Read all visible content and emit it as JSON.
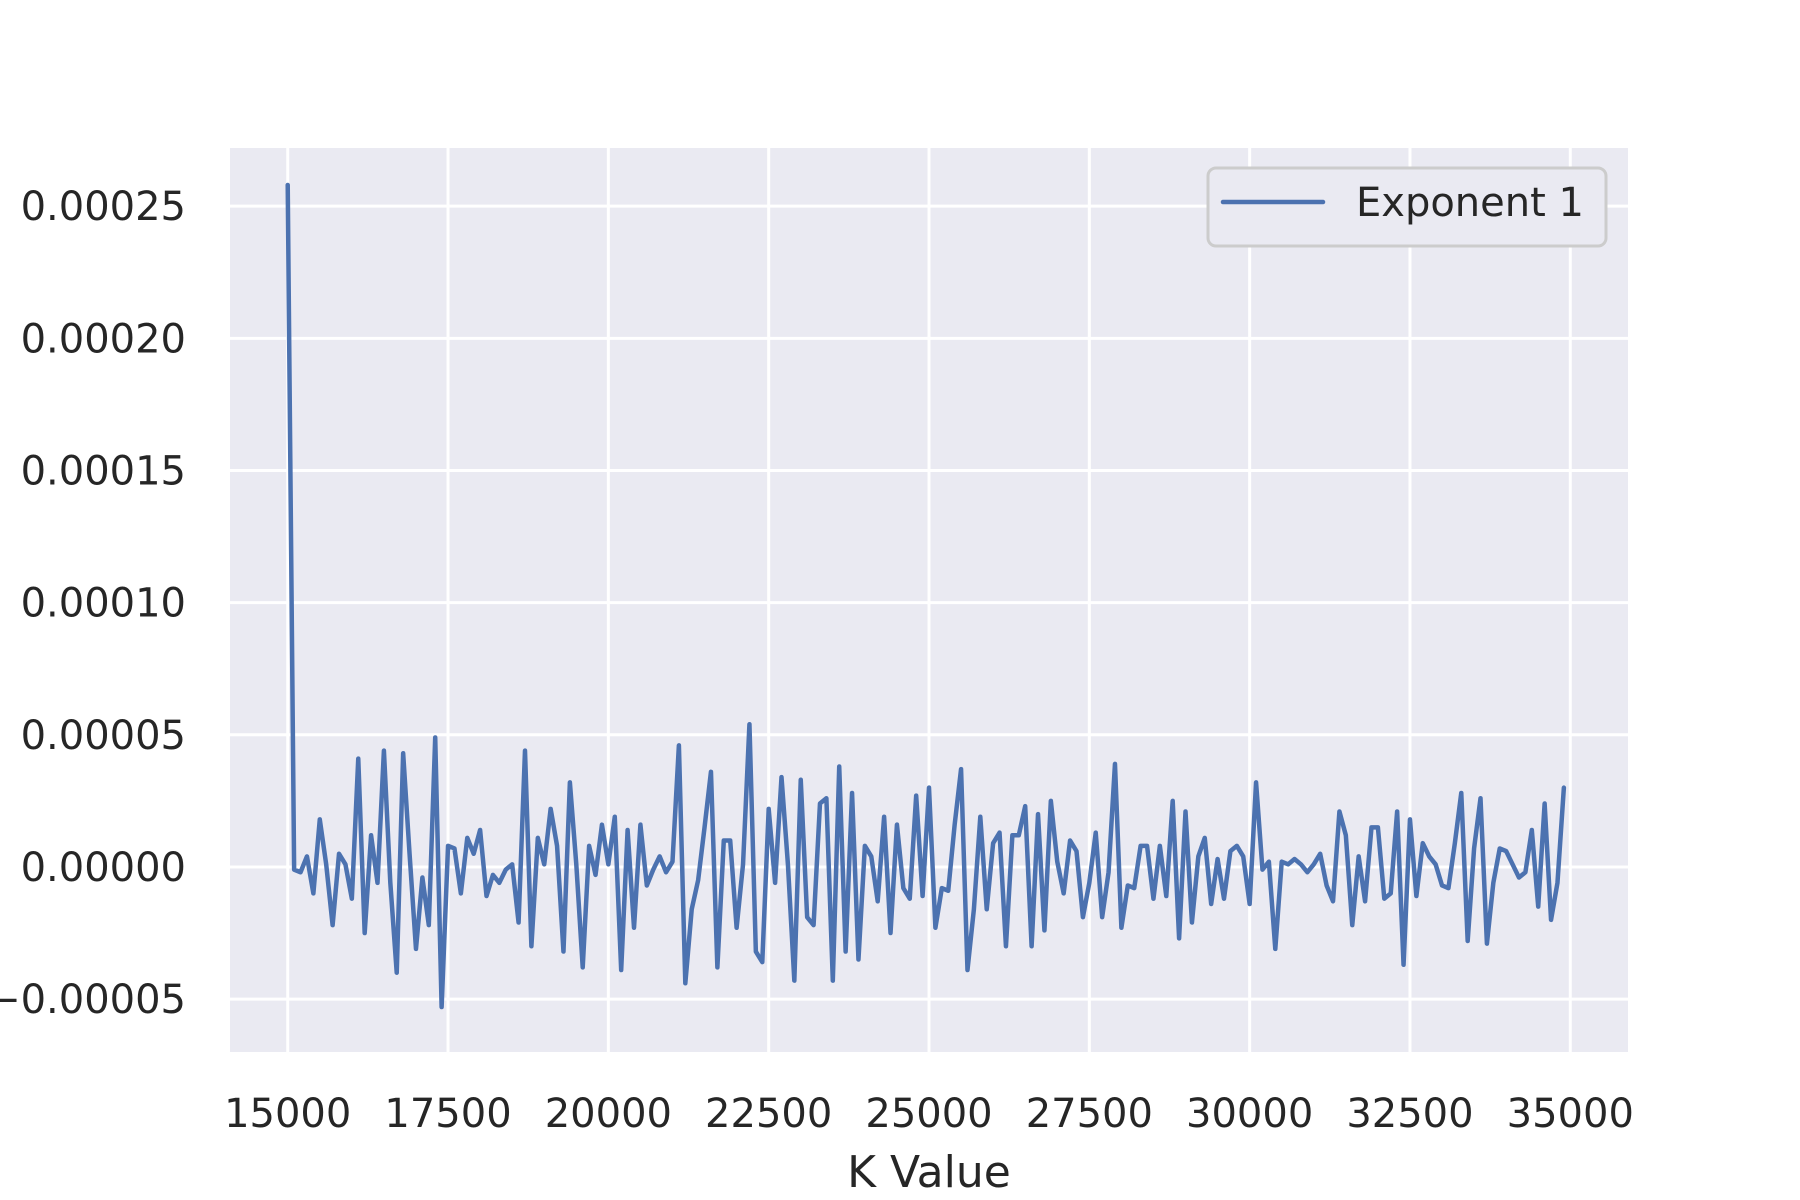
{
  "chart_data": {
    "type": "line",
    "title": "",
    "xlabel": "K Value",
    "ylabel": "",
    "xlim": [
      14100,
      35900
    ],
    "ylim": [
      -7e-05,
      0.000272
    ],
    "x_ticks": [
      15000,
      17500,
      20000,
      22500,
      25000,
      27500,
      30000,
      32500,
      35000
    ],
    "x_tick_labels": [
      "15000",
      "17500",
      "20000",
      "22500",
      "25000",
      "27500",
      "30000",
      "32500",
      "35000"
    ],
    "y_ticks": [
      -5e-05,
      0,
      5e-05,
      0.0001,
      0.00015,
      0.0002,
      0.00025
    ],
    "y_tick_labels": [
      "−0.00005",
      "0.00000",
      "0.00005",
      "0.00010",
      "0.00015",
      "0.00020",
      "0.00025"
    ],
    "grid": true,
    "legend_position": "top-right",
    "background_color": "#eaeaf2",
    "grid_color": "#ffffff",
    "series": [
      {
        "name": "Exponent 1",
        "color": "#4c72b0",
        "x_start": 15000,
        "x_step": 100,
        "values": [
          0.000258,
          -1e-06,
          -2e-06,
          4e-06,
          -1e-05,
          1.8e-05,
          1e-06,
          -2.2e-05,
          5e-06,
          1e-06,
          -1.2e-05,
          4.1e-05,
          -2.5e-05,
          1.2e-05,
          -6e-06,
          4.4e-05,
          -6e-06,
          -4e-05,
          4.3e-05,
          5e-06,
          -3.1e-05,
          -4e-06,
          -2.2e-05,
          4.9e-05,
          -5.3e-05,
          8e-06,
          7e-06,
          -1e-05,
          1.1e-05,
          5e-06,
          1.4e-05,
          -1.1e-05,
          -3e-06,
          -6e-06,
          -1e-06,
          1e-06,
          -2.1e-05,
          4.4e-05,
          -3e-05,
          1.1e-05,
          1e-06,
          2.2e-05,
          8e-06,
          -3.2e-05,
          3.2e-05,
          1e-06,
          -3.8e-05,
          8e-06,
          -3e-06,
          1.6e-05,
          1e-06,
          1.9e-05,
          -3.9e-05,
          1.4e-05,
          -2.3e-05,
          1.6e-05,
          -7e-06,
          -1e-06,
          4e-06,
          -2e-06,
          2e-06,
          4.6e-05,
          -4.4e-05,
          -1.6e-05,
          -5e-06,
          1.5e-05,
          3.6e-05,
          -3.8e-05,
          1e-05,
          1e-05,
          -2.3e-05,
          1e-06,
          5.4e-05,
          -3.2e-05,
          -3.6e-05,
          2.2e-05,
          -6e-06,
          3.4e-05,
          1e-06,
          -4.3e-05,
          3.3e-05,
          -1.9e-05,
          -2.2e-05,
          2.4e-05,
          2.6e-05,
          -4.3e-05,
          3.8e-05,
          -3.2e-05,
          2.8e-05,
          -3.5e-05,
          8e-06,
          4e-06,
          -1.3e-05,
          1.9e-05,
          -2.5e-05,
          1.6e-05,
          -8e-06,
          -1.2e-05,
          2.7e-05,
          -1.1e-05,
          3e-05,
          -2.3e-05,
          -8e-06,
          -9e-06,
          1.6e-05,
          3.7e-05,
          -3.9e-05,
          -1.6e-05,
          1.9e-05,
          -1.6e-05,
          9e-06,
          1.3e-05,
          -3e-05,
          1.2e-05,
          1.2e-05,
          2.3e-05,
          -3e-05,
          2e-05,
          -2.4e-05,
          2.5e-05,
          2e-06,
          -1e-05,
          1e-05,
          6e-06,
          -1.9e-05,
          -6e-06,
          1.3e-05,
          -1.9e-05,
          -2e-06,
          3.9e-05,
          -2.3e-05,
          -7e-06,
          -8e-06,
          8e-06,
          8e-06,
          -1.2e-05,
          8e-06,
          -1.1e-05,
          2.5e-05,
          -2.7e-05,
          2.1e-05,
          -2.1e-05,
          4e-06,
          1.1e-05,
          -1.4e-05,
          3e-06,
          -1.2e-05,
          6e-06,
          8e-06,
          4e-06,
          -1.4e-05,
          3.2e-05,
          -1e-06,
          2e-06,
          -3.1e-05,
          2e-06,
          1e-06,
          3e-06,
          1e-06,
          -2e-06,
          1e-06,
          5e-06,
          -7e-06,
          -1.3e-05,
          2.1e-05,
          1.2e-05,
          -2.2e-05,
          4e-06,
          -1.3e-05,
          1.5e-05,
          1.5e-05,
          -1.2e-05,
          -1e-05,
          2.1e-05,
          -3.7e-05,
          1.8e-05,
          -1.1e-05,
          9e-06,
          4e-06,
          1e-06,
          -7e-06,
          -8e-06,
          9e-06,
          2.8e-05,
          -2.8e-05,
          7e-06,
          2.6e-05,
          -2.9e-05,
          -6e-06,
          7e-06,
          6e-06,
          1e-06,
          -4e-06,
          -2e-06,
          1.4e-05,
          -1.5e-05,
          2.4e-05,
          -2e-05,
          -6e-06,
          3e-05
        ]
      }
    ]
  }
}
